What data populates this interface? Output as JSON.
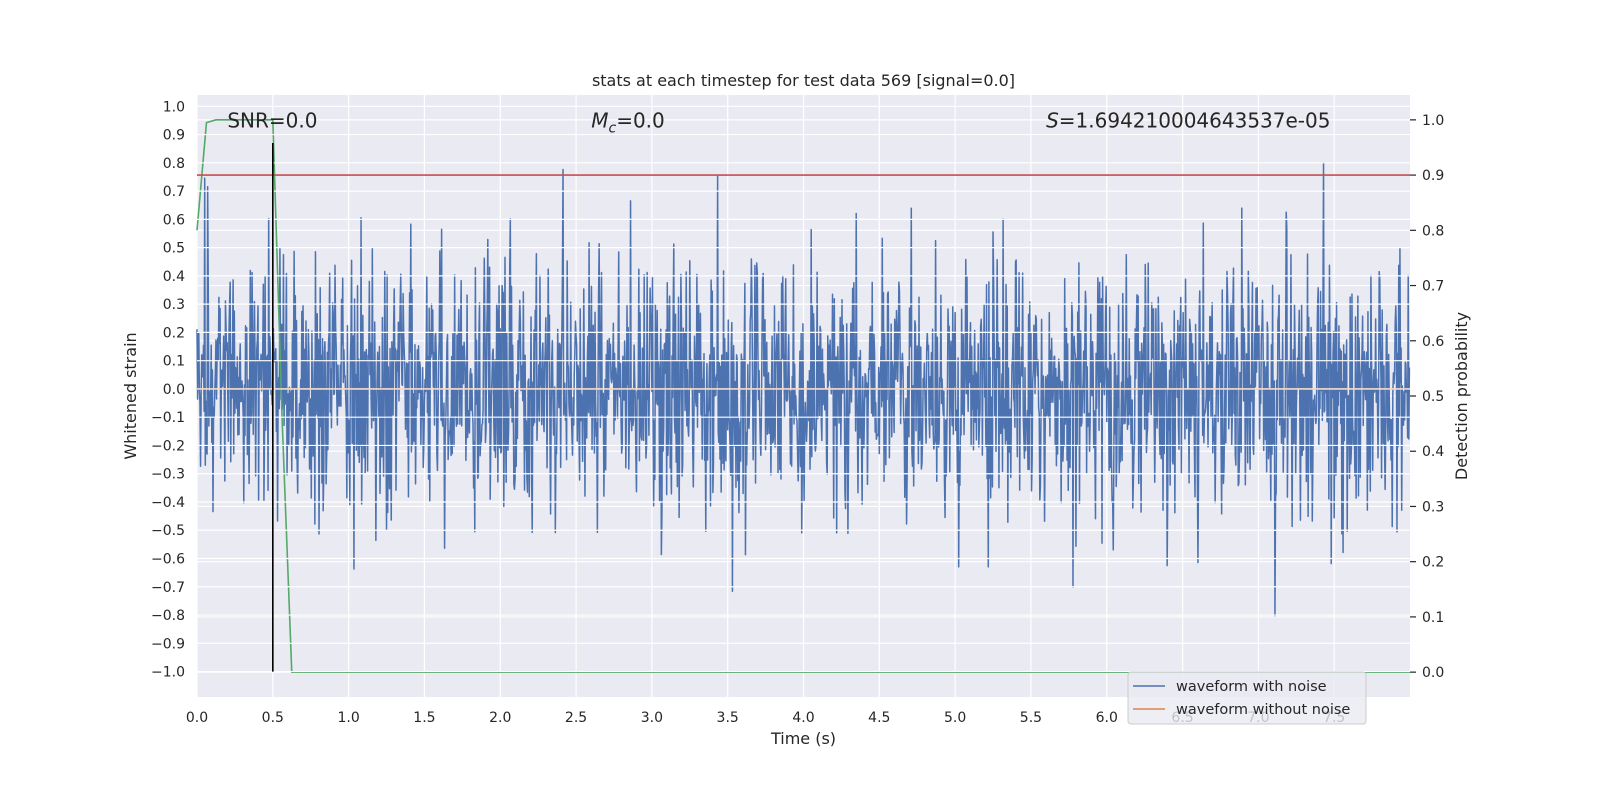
{
  "chart_data": {
    "type": "line",
    "title": "stats at each timestep for test data 569 [signal=0.0]",
    "xlabel": "Time (s)",
    "ylabel": "Whitened strain",
    "y2label": "Detection probability",
    "xlim": [
      0.0,
      8.0
    ],
    "ylim": [
      -1.09,
      1.04
    ],
    "y2lim": [
      -0.045,
      1.045
    ],
    "x_ticks": [
      0.0,
      0.5,
      1.0,
      1.5,
      2.0,
      2.5,
      3.0,
      3.5,
      4.0,
      4.5,
      5.0,
      5.5,
      6.0,
      6.5,
      7.0,
      7.5
    ],
    "x_tick_labels": [
      "0.0",
      "0.5",
      "1.0",
      "1.5",
      "2.0",
      "2.5",
      "3.0",
      "3.5",
      "4.0",
      "4.5",
      "5.0",
      "5.5",
      "6.0",
      "6.5",
      "7.0",
      "7.5"
    ],
    "y_ticks": [
      1.0,
      0.9,
      0.8,
      0.7,
      0.6,
      0.5,
      0.4,
      0.3,
      0.2,
      0.1,
      0.0,
      -0.1,
      -0.2,
      -0.3,
      -0.4,
      -0.5,
      -0.6,
      -0.7,
      -0.8,
      -0.9,
      -1.0
    ],
    "y_tick_labels": [
      "1.0",
      "0.9",
      "0.8",
      "0.7",
      "0.6",
      "0.5",
      "0.4",
      "0.3",
      "0.2",
      "0.1",
      "0.0",
      "−0.1",
      "−0.2",
      "−0.3",
      "−0.4",
      "−0.5",
      "−0.6",
      "−0.7",
      "−0.8",
      "−0.9",
      "−1.0"
    ],
    "y2_ticks": [
      1.0,
      0.9,
      0.8,
      0.7,
      0.6,
      0.5,
      0.4,
      0.3,
      0.2,
      0.1,
      0.0
    ],
    "y2_tick_labels": [
      "1.0",
      "0.9",
      "0.8",
      "0.7",
      "0.6",
      "0.5",
      "0.4",
      "0.3",
      "0.2",
      "0.1",
      "0.0"
    ],
    "grid": true,
    "noise": {
      "sample_rate": 256,
      "samples": 2048,
      "sigma": 0.22,
      "clip": 0.98,
      "seed": 569
    },
    "series": [
      {
        "name": "waveform with noise",
        "color": "#4c72b0",
        "axis": "left",
        "kind": "noise"
      },
      {
        "name": "waveform without noise",
        "color": "#dd8452",
        "axis": "left",
        "x": [
          0.0,
          8.0
        ],
        "y": [
          0.0,
          0.0
        ]
      },
      {
        "name": "detection probability",
        "color": "#55a868",
        "axis": "right",
        "x": [
          0.0,
          0.0625,
          0.125,
          0.1875,
          0.25,
          0.3125,
          0.375,
          0.4375,
          0.5,
          0.5625,
          0.625,
          1.0,
          2.0,
          3.0,
          4.0,
          5.0,
          6.0,
          7.0,
          8.0
        ],
        "y": [
          0.8,
          0.995,
          1.0,
          1.0,
          1.0,
          1.0,
          1.0,
          1.0,
          1.0,
          0.45,
          0.0,
          0.0,
          0.0,
          0.0,
          0.0,
          0.0,
          0.0,
          0.0,
          0.0
        ]
      },
      {
        "name": "threshold",
        "color": "#c44e52",
        "axis": "right",
        "x": [
          0.0,
          8.0
        ],
        "y": [
          0.9,
          0.9
        ]
      }
    ],
    "marker_line": {
      "x": 0.5,
      "y_from": -1.0,
      "y_to": 0.87,
      "color": "#000000"
    },
    "annotations": [
      {
        "name": "snr",
        "text": "SNR=0.0",
        "x": 0.2
      },
      {
        "name": "chirp-mass",
        "text": "M_c=0.0",
        "x": 2.6
      },
      {
        "name": "s-stat",
        "text": "S=1.694210004643537e-05",
        "x": 5.6
      }
    ],
    "annotation_y": 0.95,
    "legend": {
      "position": "lower-right",
      "entries": [
        {
          "label": "waveform with noise",
          "color": "#4c72b0"
        },
        {
          "label": "waveform without noise",
          "color": "#dd8452"
        }
      ]
    }
  }
}
